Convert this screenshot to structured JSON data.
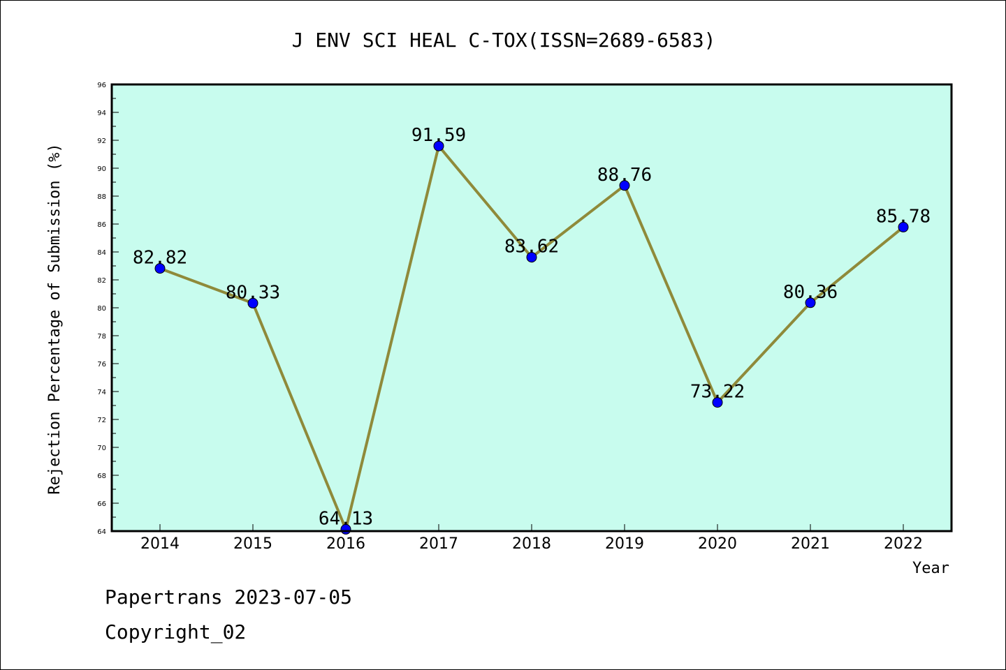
{
  "chart_data": {
    "type": "line",
    "title": "J ENV SCI HEAL C-TOX(ISSN=2689-6583)",
    "xlabel": "Year",
    "ylabel": "Rejection Percentage of Submission (%)",
    "categories": [
      "2014",
      "2015",
      "2016",
      "2017",
      "2018",
      "2019",
      "2020",
      "2021",
      "2022"
    ],
    "values": [
      82.82,
      80.33,
      64.13,
      91.59,
      83.62,
      88.76,
      73.22,
      80.36,
      85.78
    ],
    "data_labels": [
      "82.82",
      "80.33",
      "64.13",
      "91.59",
      "83.62",
      "88.76",
      "73.22",
      "80.36",
      "85.78"
    ],
    "ylim": [
      64,
      96
    ],
    "yticks": [
      64,
      66,
      68,
      70,
      72,
      74,
      76,
      78,
      80,
      82,
      84,
      86,
      88,
      90,
      92,
      94,
      96
    ],
    "grid": false,
    "colors": {
      "plot_background": "#c8fcee",
      "line": "#8f8a3a",
      "marker": "#0000ff"
    }
  },
  "footer": {
    "line1": "Papertrans 2023-07-05",
    "line2": "Copyright_02"
  }
}
